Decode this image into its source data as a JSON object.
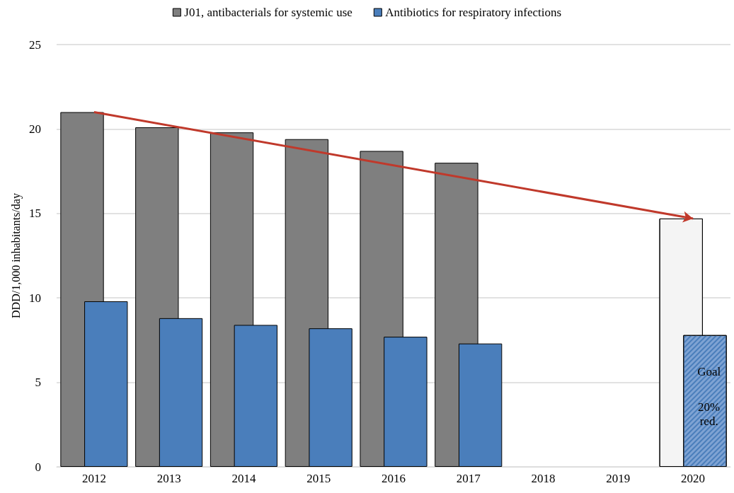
{
  "chart_data": {
    "type": "bar",
    "ylabel": "DDD/1,000 inhabitants/day",
    "categories": [
      "2012",
      "2013",
      "2014",
      "2015",
      "2016",
      "2017",
      "2018",
      "2019",
      "2020"
    ],
    "series": [
      {
        "name": "J01, antibacterials for systemic use",
        "color": "#7f7f7f",
        "colors": [
          "#7f7f7f",
          "#7f7f7f",
          "#7f7f7f",
          "#7f7f7f",
          "#7f7f7f",
          "#7f7f7f",
          "#7f7f7f",
          "#7f7f7f",
          "#f4f4f4"
        ],
        "values": [
          21.0,
          20.1,
          19.8,
          19.4,
          18.7,
          18.0,
          null,
          null,
          14.7
        ]
      },
      {
        "name": "Antibiotics for respiratory infections",
        "color": "#4a7ebb",
        "colors": [
          "#4a7ebb",
          "#4a7ebb",
          "#4a7ebb",
          "#4a7ebb",
          "#4a7ebb",
          "#4a7ebb",
          "#4a7ebb",
          "#4a7ebb",
          "#7fa3d3"
        ],
        "values": [
          9.8,
          8.8,
          8.4,
          8.2,
          7.7,
          7.3,
          null,
          null,
          7.8
        ]
      },
      {
        "type": "line",
        "color": "#c0392b",
        "values": [
          21.0,
          null,
          null,
          null,
          null,
          null,
          null,
          null,
          14.7
        ]
      }
    ],
    "annotations": [
      "Goal",
      "20%\nred."
    ],
    "ylim": [
      0,
      25
    ],
    "yticks": [
      0,
      5,
      10,
      15,
      20,
      25
    ],
    "grid": "y",
    "legend": "top"
  }
}
